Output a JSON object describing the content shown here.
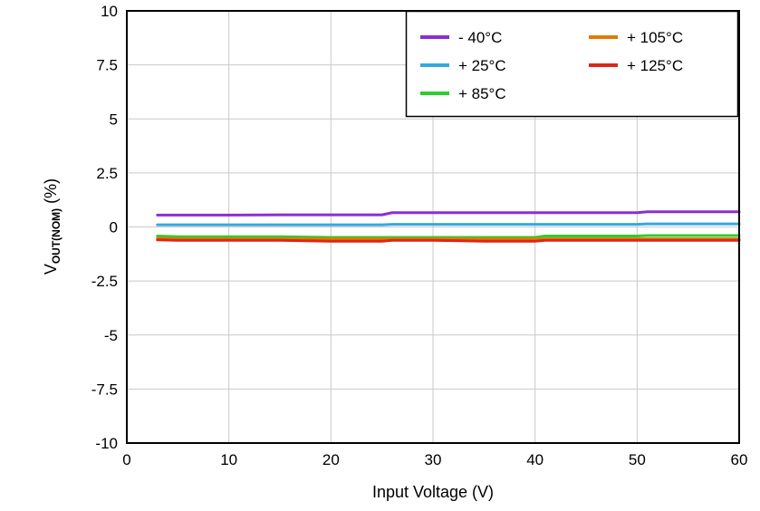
{
  "chart_data": {
    "type": "line",
    "title": "",
    "xlabel": "Input Voltage (V)",
    "ylabel": "V_OUT(NOM) (%)",
    "ylabel_parts": {
      "main": "V",
      "sub": "OUT(NOM)",
      "suffix": " (%)"
    },
    "xlim": [
      0,
      60
    ],
    "ylim": [
      -10,
      10
    ],
    "x_ticks": [
      "0",
      "10",
      "20",
      "30",
      "40",
      "50",
      "60"
    ],
    "x_tick_values": [
      0,
      10,
      20,
      30,
      40,
      50,
      60
    ],
    "y_ticks": [
      "10",
      "7.5",
      "5",
      "2.5",
      "0",
      "-2.5",
      "-5",
      "-7.5",
      "-10"
    ],
    "y_tick_values": [
      10,
      7.5,
      5,
      2.5,
      0,
      -2.5,
      -5,
      -7.5,
      -10
    ],
    "grid": true,
    "legend_position": "top-right",
    "grid_color": "#c9c9c9",
    "border_color": "#000000",
    "x": [
      3,
      5,
      10,
      15,
      20,
      25,
      26,
      30,
      35,
      40,
      41,
      45,
      50,
      51,
      55,
      60
    ],
    "series": [
      {
        "name": "- 40°C",
        "color": "#8b2fd0",
        "values": [
          0.55,
          0.55,
          0.55,
          0.56,
          0.56,
          0.56,
          0.66,
          0.66,
          0.66,
          0.66,
          0.66,
          0.66,
          0.66,
          0.7,
          0.7,
          0.7
        ]
      },
      {
        "name": "+ 25°C",
        "color": "#35a8e0",
        "values": [
          0.1,
          0.1,
          0.1,
          0.1,
          0.1,
          0.1,
          0.12,
          0.12,
          0.12,
          0.12,
          0.12,
          0.12,
          0.12,
          0.14,
          0.14,
          0.14
        ]
      },
      {
        "name": "+ 85°C",
        "color": "#2ecc2e",
        "values": [
          -0.42,
          -0.45,
          -0.45,
          -0.45,
          -0.48,
          -0.48,
          -0.48,
          -0.48,
          -0.48,
          -0.48,
          -0.42,
          -0.42,
          -0.42,
          -0.4,
          -0.4,
          -0.4
        ]
      },
      {
        "name": "+ 105°C",
        "color": "#e07b00",
        "values": [
          -0.52,
          -0.55,
          -0.55,
          -0.55,
          -0.55,
          -0.55,
          -0.55,
          -0.55,
          -0.55,
          -0.55,
          -0.55,
          -0.55,
          -0.55,
          -0.55,
          -0.55,
          -0.55
        ]
      },
      {
        "name": "+ 125°C",
        "color": "#dc261a",
        "values": [
          -0.6,
          -0.62,
          -0.62,
          -0.62,
          -0.66,
          -0.66,
          -0.62,
          -0.62,
          -0.66,
          -0.66,
          -0.62,
          -0.62,
          -0.62,
          -0.62,
          -0.62,
          -0.62
        ]
      }
    ]
  }
}
